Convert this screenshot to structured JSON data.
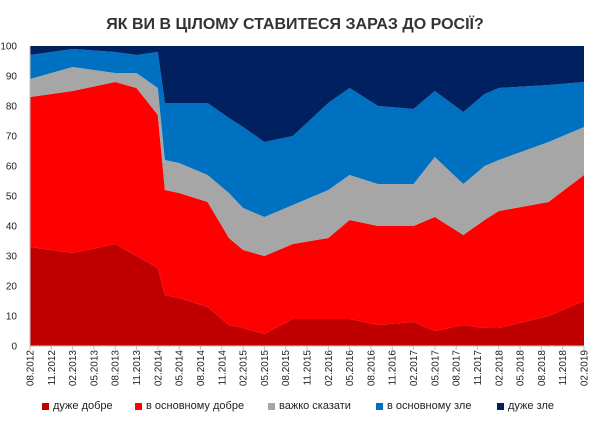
{
  "title": "ЯК ВИ В ЦІЛОМУ СТАВИТЕСЯ ЗАРАЗ ДО РОСІЇ?",
  "chart_data": {
    "type": "area",
    "stacked": true,
    "title": "ЯК ВИ В ЦІЛОМУ СТАВИТЕСЯ ЗАРАЗ ДО РОСІЇ?",
    "xlabel": "",
    "ylabel": "",
    "ylim": [
      0,
      100
    ],
    "yticks": [
      0,
      10,
      20,
      30,
      40,
      50,
      60,
      70,
      80,
      90,
      100
    ],
    "grid": false,
    "legend_position": "bottom",
    "x": [
      "08.2012",
      "11.2012",
      "02.2013",
      "05.2013",
      "08.2013",
      "11.2013",
      "02.2014",
      "05.2014",
      "08.2014",
      "11.2014",
      "02.2015",
      "05.2015",
      "08.2015",
      "11.2015",
      "02.2016",
      "05.2016",
      "08.2016",
      "11.2016",
      "02.2017",
      "05.2017",
      "08.2017",
      "11.2017",
      "02.2018",
      "05.2018",
      "08.2018",
      "11.2018",
      "02.2019"
    ],
    "observations": [
      {
        "x": "08.2012",
        "values": [
          33,
          50,
          6,
          8,
          3
        ]
      },
      {
        "x": "02.2013",
        "values": [
          31,
          54,
          8,
          6,
          1
        ]
      },
      {
        "x": "08.2013",
        "values": [
          34,
          54,
          3,
          7,
          2
        ]
      },
      {
        "x": "11.2013",
        "values": [
          30,
          56,
          5,
          6,
          3
        ]
      },
      {
        "x": "02.2014",
        "values": [
          26,
          51,
          9,
          12,
          2
        ]
      },
      {
        "x": "03.2014",
        "values": [
          17,
          35,
          10,
          19,
          19
        ]
      },
      {
        "x": "05.2014",
        "values": [
          16,
          35,
          10,
          20,
          19
        ]
      },
      {
        "x": "09.2014",
        "values": [
          13,
          35,
          9,
          24,
          19
        ]
      },
      {
        "x": "12.2014",
        "values": [
          7,
          29,
          15,
          25,
          24
        ]
      },
      {
        "x": "02.2015",
        "values": [
          6,
          26,
          14,
          27,
          27
        ]
      },
      {
        "x": "05.2015",
        "values": [
          4,
          26,
          13,
          25,
          32
        ]
      },
      {
        "x": "09.2015",
        "values": [
          9,
          25,
          13,
          23,
          30
        ]
      },
      {
        "x": "02.2016",
        "values": [
          9,
          27,
          16,
          29,
          19
        ]
      },
      {
        "x": "05.2016",
        "values": [
          9,
          33,
          15,
          29,
          14
        ]
      },
      {
        "x": "09.2016",
        "values": [
          7,
          33,
          14,
          26,
          20
        ]
      },
      {
        "x": "02.2017",
        "values": [
          8,
          32,
          14,
          25,
          21
        ]
      },
      {
        "x": "05.2017",
        "values": [
          5,
          38,
          20,
          22,
          15
        ]
      },
      {
        "x": "09.2017",
        "values": [
          7,
          30,
          17,
          24,
          22
        ]
      },
      {
        "x": "12.2017",
        "values": [
          6,
          36,
          18,
          24,
          16
        ]
      },
      {
        "x": "02.2018",
        "values": [
          6,
          39,
          17,
          24,
          14
        ]
      },
      {
        "x": "09.2018",
        "values": [
          10,
          38,
          20,
          19,
          13
        ]
      },
      {
        "x": "02.2019",
        "values": [
          15,
          42,
          16,
          15,
          12
        ]
      }
    ],
    "series": [
      {
        "name": "дуже добре",
        "color": "#C00000"
      },
      {
        "name": "в основному добре",
        "color": "#FF0000"
      },
      {
        "name": "важко сказати",
        "color": "#A6A6A6"
      },
      {
        "name": "в основному зле",
        "color": "#0070C0"
      },
      {
        "name": "дуже зле",
        "color": "#002060"
      }
    ]
  }
}
